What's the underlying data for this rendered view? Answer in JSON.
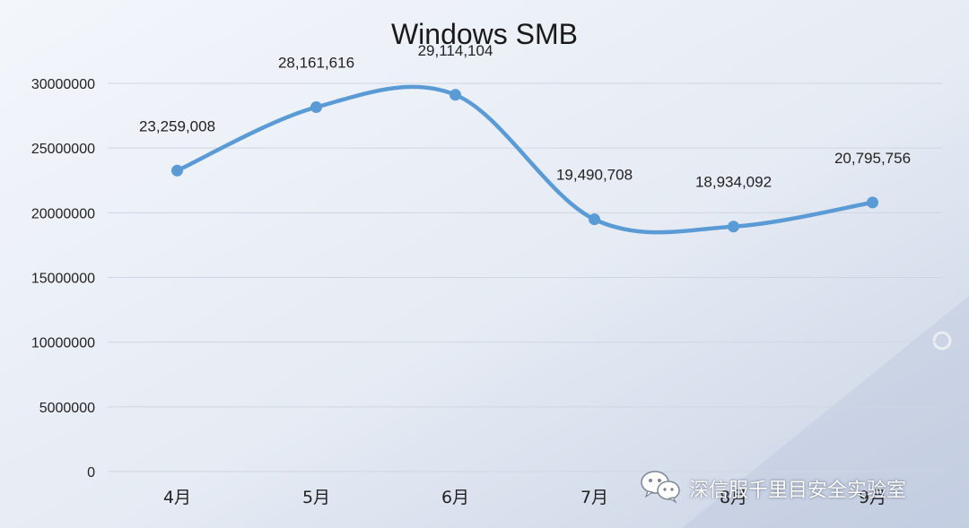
{
  "chart_data": {
    "type": "line",
    "title": "Windows SMB",
    "categories": [
      "4月",
      "5月",
      "6月",
      "7月",
      "8月",
      "9月"
    ],
    "values": [
      23259008,
      28161616,
      29114104,
      19490708,
      18934092,
      20795756
    ],
    "data_labels": [
      "23,259,008",
      "28,161,616",
      "29,114,104",
      "19,490,708",
      "18,934,092",
      "20,795,756"
    ],
    "yticks": [
      0,
      5000000,
      10000000,
      15000000,
      20000000,
      25000000,
      30000000
    ],
    "ytick_labels": [
      "0",
      "5000000",
      "10000000",
      "15000000",
      "20000000",
      "25000000",
      "30000000"
    ],
    "ylim": [
      0,
      30000000
    ],
    "smooth": true,
    "grid": true,
    "legend": "none",
    "line_color": "#5b9bd5"
  },
  "watermark": {
    "text": "深信服千里目安全实验室",
    "icon": "wechat-icon"
  }
}
